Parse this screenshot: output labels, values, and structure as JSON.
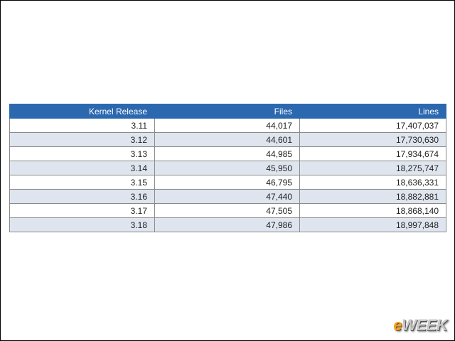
{
  "table": {
    "headers": [
      "Kernel Release",
      "Files",
      "Lines"
    ],
    "rows": [
      [
        "3.11",
        "44,017",
        "17,407,037"
      ],
      [
        "3.12",
        "44,601",
        "17,730,630"
      ],
      [
        "3.13",
        "44,985",
        "17,934,674"
      ],
      [
        "3.14",
        "45,950",
        "18,275,747"
      ],
      [
        "3.15",
        "46,795",
        "18,636,331"
      ],
      [
        "3.16",
        "47,440",
        "18,882,881"
      ],
      [
        "3.17",
        "47,505",
        "18,868,140"
      ],
      [
        "3.18",
        "47,986",
        "18,997,848"
      ]
    ]
  },
  "logo": {
    "e": "e",
    "rest": "WEEK"
  },
  "colors": {
    "header_bg": "#2c68b0",
    "row_alt": "#dfe5ee",
    "logo_accent": "#f2a21d"
  }
}
